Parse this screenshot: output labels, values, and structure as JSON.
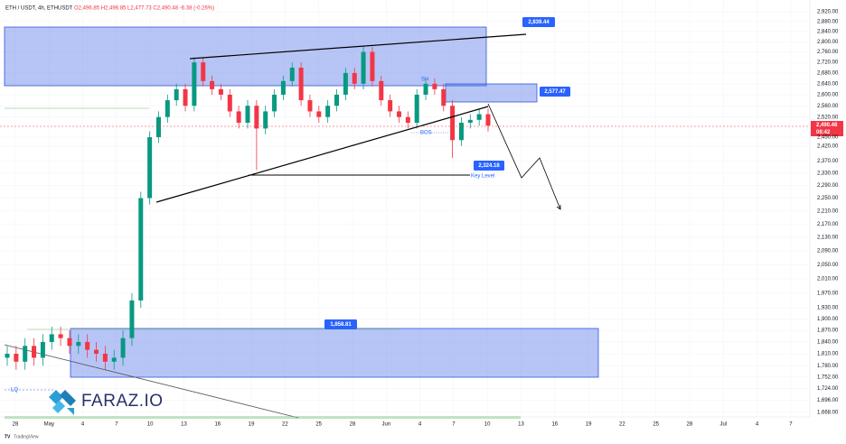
{
  "chart_data": {
    "type": "candlestick",
    "title": "ETH / USDT, 4h, ETHUSDT",
    "ohlc_header": "O2,496.85 H2,496.85 L2,477.73 C2,490.48 -6.38 (-0.26%)",
    "log_scale": true,
    "grid": true,
    "up_color": "#089981",
    "down_color": "#f23645",
    "ylim": [
      1657,
      2968
    ],
    "yticks": [
      {
        "value": 2920,
        "label": "2,920.00"
      },
      {
        "value": 2880,
        "label": "2,880.00"
      },
      {
        "value": 2840,
        "label": "2,840.00"
      },
      {
        "value": 2800,
        "label": "2,800.00"
      },
      {
        "value": 2760,
        "label": "2,760.00"
      },
      {
        "value": 2720,
        "label": "2,720.00"
      },
      {
        "value": 2680,
        "label": "2,680.00"
      },
      {
        "value": 2640,
        "label": "2,640.00"
      },
      {
        "value": 2600,
        "label": "2,600.00"
      },
      {
        "value": 2560,
        "label": "2,560.00"
      },
      {
        "value": 2520,
        "label": "2,520.00"
      },
      {
        "value": 2450,
        "label": "2,450.00"
      },
      {
        "value": 2420,
        "label": "2,420.00"
      },
      {
        "value": 2370,
        "label": "2,370.00"
      },
      {
        "value": 2330,
        "label": "2,330.00"
      },
      {
        "value": 2290,
        "label": "2,290.00"
      },
      {
        "value": 2250,
        "label": "2,250.00"
      },
      {
        "value": 2210,
        "label": "2,210.00"
      },
      {
        "value": 2170,
        "label": "2,170.00"
      },
      {
        "value": 2130,
        "label": "2,130.00"
      },
      {
        "value": 2090,
        "label": "2,090.00"
      },
      {
        "value": 2050,
        "label": "2,050.00"
      },
      {
        "value": 2010,
        "label": "2,010.00"
      },
      {
        "value": 1970,
        "label": "1,970.00"
      },
      {
        "value": 1930,
        "label": "1,930.00"
      },
      {
        "value": 1900,
        "label": "1,900.00"
      },
      {
        "value": 1870,
        "label": "1,870.00"
      },
      {
        "value": 1840,
        "label": "1,840.00"
      },
      {
        "value": 1810,
        "label": "1,810.00"
      },
      {
        "value": 1780,
        "label": "1,780.00"
      },
      {
        "value": 1752,
        "label": "1,752.00"
      },
      {
        "value": 1724,
        "label": "1,724.00"
      },
      {
        "value": 1696,
        "label": "1,696.00"
      },
      {
        "value": 1668,
        "label": "1,668.00"
      }
    ],
    "x_labels": [
      "28",
      "May",
      "4",
      "7",
      "10",
      "13",
      "16",
      "19",
      "22",
      "25",
      "28",
      "Jun",
      "4",
      "7",
      "10",
      "13",
      "16",
      "19",
      "22",
      "25",
      "28",
      "Jul",
      "4",
      "7"
    ],
    "open": [
      1800,
      1810,
      1790,
      1830,
      1800,
      1840,
      1860,
      1850,
      1830,
      1840,
      1820,
      1810,
      1790,
      1800,
      1850,
      1950,
      2250,
      2450,
      2520,
      2580,
      2620,
      2560,
      2720,
      2650,
      2620,
      2600,
      2540,
      2500,
      2560,
      2480,
      2540,
      2600,
      2650,
      2700,
      2580,
      2540,
      2520,
      2560,
      2600,
      2680,
      2640,
      2760,
      2650,
      2580,
      2540,
      2520,
      2500,
      2600,
      2640,
      2620,
      2560,
      2440,
      2500,
      2510,
      2530
    ],
    "high": [
      1830,
      1830,
      1850,
      1850,
      1860,
      1880,
      1880,
      1870,
      1860,
      1860,
      1840,
      1830,
      1820,
      1870,
      1970,
      2270,
      2470,
      2540,
      2600,
      2640,
      2640,
      2740,
      2740,
      2670,
      2640,
      2620,
      2560,
      2580,
      2580,
      2560,
      2620,
      2670,
      2720,
      2720,
      2600,
      2560,
      2580,
      2620,
      2700,
      2700,
      2780,
      2780,
      2670,
      2600,
      2560,
      2540,
      2620,
      2660,
      2660,
      2640,
      2580,
      2520,
      2530,
      2550,
      2550
    ],
    "low": [
      1780,
      1770,
      1770,
      1780,
      1780,
      1820,
      1830,
      1810,
      1810,
      1800,
      1790,
      1770,
      1770,
      1780,
      1830,
      1930,
      2230,
      2430,
      2500,
      2560,
      2540,
      2540,
      2630,
      2600,
      2580,
      2520,
      2480,
      2480,
      2340,
      2460,
      2520,
      2580,
      2630,
      2560,
      2520,
      2500,
      2500,
      2540,
      2580,
      2620,
      2620,
      2630,
      2560,
      2520,
      2500,
      2480,
      2480,
      2580,
      2600,
      2540,
      2380,
      2420,
      2480,
      2490,
      2470
    ],
    "close": [
      1810,
      1790,
      1830,
      1800,
      1840,
      1860,
      1850,
      1830,
      1840,
      1820,
      1810,
      1790,
      1800,
      1850,
      1950,
      2250,
      2450,
      2520,
      2580,
      2620,
      2560,
      2720,
      2650,
      2620,
      2600,
      2540,
      2500,
      2560,
      2480,
      2540,
      2600,
      2650,
      2700,
      2580,
      2540,
      2520,
      2560,
      2600,
      2680,
      2640,
      2760,
      2650,
      2580,
      2540,
      2520,
      2500,
      2600,
      2640,
      2620,
      2560,
      2440,
      2500,
      2510,
      2530,
      2490
    ],
    "price_label": "2,490.48",
    "price_time": "08:42",
    "annotations": {
      "top": "2,839.44",
      "supply": "2,577.47",
      "key": "2,324.18",
      "demand": "1,858.81",
      "sh": "SH",
      "bos": "BOS",
      "key_level": "Key Level",
      "lq": "LQ"
    },
    "brand": "FARAZ.IO",
    "footer": "TradingView"
  }
}
